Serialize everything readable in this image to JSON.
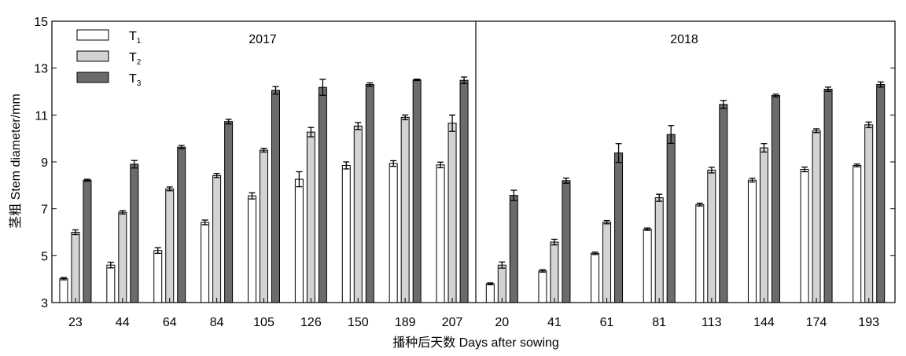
{
  "chart_data": {
    "type": "bar",
    "ylabel": "茎粗 Stem diameter/mm",
    "xlabel": "播种后天数 Days after sowing",
    "ylim": [
      3,
      15
    ],
    "yticks": [
      3,
      5,
      7,
      9,
      11,
      13,
      15
    ],
    "legend": {
      "placement": "top-left",
      "entries": [
        {
          "label": "T",
          "sub": "1",
          "color": "#ffffff"
        },
        {
          "label": "T",
          "sub": "2",
          "color": "#d3d3d3"
        },
        {
          "label": "T",
          "sub": "3",
          "color": "#6b6b6b"
        }
      ]
    },
    "panels": [
      {
        "title": "2017",
        "categories": [
          "23",
          "44",
          "64",
          "84",
          "105",
          "126",
          "150",
          "189",
          "207"
        ],
        "series": [
          {
            "values": [
              4.02,
              4.6,
              5.22,
              6.42,
              7.55,
              8.26,
              8.85,
              8.93,
              8.87
            ],
            "errors": [
              0.05,
              0.12,
              0.12,
              0.1,
              0.13,
              0.32,
              0.15,
              0.12,
              0.12
            ]
          },
          {
            "values": [
              6.0,
              6.85,
              7.85,
              8.42,
              9.5,
              10.27,
              10.53,
              10.9,
              10.65
            ],
            "errors": [
              0.1,
              0.07,
              0.08,
              0.09,
              0.08,
              0.2,
              0.15,
              0.1,
              0.35
            ]
          },
          {
            "values": [
              8.22,
              8.9,
              9.63,
              10.72,
              12.05,
              12.18,
              12.3,
              12.5,
              12.48
            ],
            "errors": [
              0.04,
              0.16,
              0.07,
              0.1,
              0.16,
              0.34,
              0.07,
              0.03,
              0.14
            ]
          }
        ]
      },
      {
        "title": "2018",
        "categories": [
          "20",
          "41",
          "61",
          "81",
          "113",
          "144",
          "174",
          "193"
        ],
        "series": [
          {
            "values": [
              3.8,
              4.35,
              5.1,
              6.13,
              7.18,
              8.22,
              8.68,
              8.85
            ],
            "errors": [
              0.04,
              0.05,
              0.05,
              0.05,
              0.06,
              0.08,
              0.1,
              0.06
            ]
          },
          {
            "values": [
              4.6,
              5.58,
              6.43,
              7.47,
              8.65,
              9.6,
              10.33,
              10.58
            ],
            "errors": [
              0.13,
              0.12,
              0.07,
              0.15,
              0.12,
              0.18,
              0.08,
              0.12
            ]
          },
          {
            "values": [
              7.57,
              8.2,
              9.38,
              10.17,
              11.45,
              11.83,
              12.1,
              12.3
            ],
            "errors": [
              0.22,
              0.11,
              0.4,
              0.38,
              0.17,
              0.06,
              0.09,
              0.11
            ]
          }
        ]
      }
    ]
  }
}
